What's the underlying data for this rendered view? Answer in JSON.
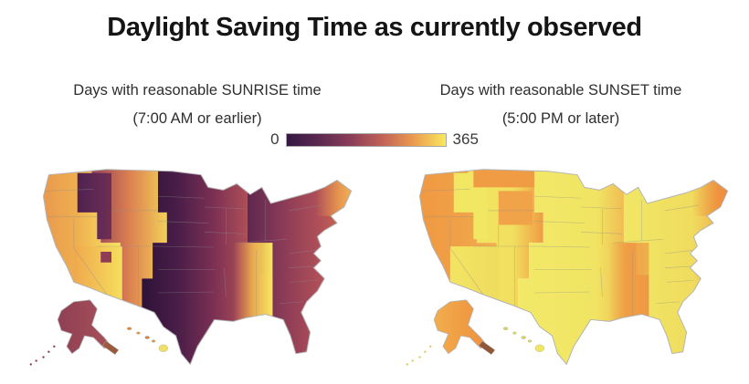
{
  "title": "Daylight Saving Time as currently observed",
  "colorbar": {
    "min_label": "0",
    "max_label": "365",
    "stops": [
      "#341943",
      "#5B2850",
      "#8A3D58",
      "#C26257",
      "#EC9B4E",
      "#F8E95F"
    ]
  },
  "panels": [
    {
      "id": "sunrise",
      "title": "Days with reasonable SUNRISE time",
      "subtitle": "(7:00 AM or earlier)",
      "palette": {
        "bands": {
          "pacific": {
            "stops": [
              [
                0,
                "#E58C4C",
                1
              ],
              [
                0.55,
                "#EFAE50",
                1
              ],
              [
                1,
                "#F6E55E",
                1
              ]
            ]
          },
          "mountain": {
            "stops": [
              [
                0,
                "#93405A",
                1
              ],
              [
                0.5,
                "#DC8050",
                1
              ],
              [
                1,
                "#F2CF58",
                1
              ]
            ]
          },
          "central": {
            "stops": [
              [
                0,
                "#2E1238",
                1
              ],
              [
                0.28,
                "#4A1E48",
                1
              ],
              [
                0.55,
                "#7C3054",
                1
              ],
              [
                0.78,
                "#A84B56",
                1
              ],
              [
                1,
                "#C96A51",
                1
              ]
            ]
          },
          "eastern": {
            "stops": [
              [
                0,
                "#5E2750",
                1
              ],
              [
                0.3,
                "#8A3A57",
                1
              ],
              [
                0.62,
                "#AF4F58",
                1
              ],
              [
                0.85,
                "#CD6852",
                1
              ],
              [
                1,
                "#E8924E",
                1
              ]
            ]
          },
          "idaho": {
            "stops": [
              [
                0,
                "#4F2150",
                1
              ],
              [
                1,
                "#6E2F55",
                1
              ]
            ]
          },
          "montana": null,
          "wyoming": null,
          "arizona": {
            "stops": [
              [
                0,
                "#EFA84E",
                1
              ],
              [
                1,
                "#F5DE5C",
                1
              ]
            ]
          },
          "azsq": {
            "solid": "#8F3C56"
          },
          "deepsouth": {
            "stops": [
              [
                0,
                "#E89A4E",
                0
              ],
              [
                0.5,
                "#EFB350",
                0.9
              ],
              [
                1,
                "#F6E75F",
                1
              ]
            ]
          },
          "maine": {
            "stops": [
              [
                0,
                "#E8954E",
                0
              ],
              [
                0.55,
                "#EFA64F",
                0.8
              ],
              [
                1,
                "#F4C455",
                1
              ]
            ]
          }
        },
        "alaska": {
          "stops": [
            [
              0,
              "#8F4055",
              1
            ],
            [
              1,
              "#A85058",
              1
            ]
          ]
        },
        "aleutians": "#9A5A3C",
        "akdots": "#8F4055",
        "hawaii": [
          "#DC8A3E",
          "#E09040",
          "#D97F3F",
          "#E09040",
          "#F0E166"
        ]
      }
    },
    {
      "id": "sunset",
      "title": "Days with reasonable SUNSET time",
      "subtitle": "(5:00 PM or later)",
      "palette": {
        "bands": {
          "pacific": {
            "stops": [
              [
                0,
                "#EF953F",
                1
              ],
              [
                0.6,
                "#F0A047",
                1
              ],
              [
                1,
                "#F2AF4C",
                1
              ]
            ]
          },
          "mountain": {
            "stops": [
              [
                0,
                "#F1E460",
                1
              ],
              [
                0.6,
                "#F1E05F",
                1
              ],
              [
                1,
                "#EF9B43",
                1
              ]
            ]
          },
          "central": {
            "stops": [
              [
                0,
                "#F2E968",
                1
              ],
              [
                0.6,
                "#F1E463",
                1
              ],
              [
                1,
                "#EF9843",
                1
              ]
            ]
          },
          "eastern": {
            "stops": [
              [
                0,
                "#F0E765",
                1
              ],
              [
                0.6,
                "#F0DC5E",
                1
              ],
              [
                1,
                "#EF9843",
                1
              ]
            ]
          },
          "idaho": {
            "stops": [
              [
                0,
                "#F1E762",
                1
              ],
              [
                1,
                "#F1E762",
                1
              ]
            ]
          },
          "montana": {
            "solid": "#F09C45"
          },
          "wyoming": {
            "solid": "#F0A348"
          },
          "arizona": {
            "stops": [
              [
                0,
                "#F2E563",
                1
              ],
              [
                1,
                "#F0DC5E",
                1
              ]
            ]
          },
          "azsq": null,
          "deepsouth": {
            "stops": [
              [
                0,
                "#EF9843",
                0
              ],
              [
                0.45,
                "#EF9843",
                0.85
              ],
              [
                1,
                "#EF9843",
                0.7
              ]
            ]
          },
          "maine": {
            "stops": [
              [
                0,
                "#EF9843",
                0
              ],
              [
                0.6,
                "#EE8E3E",
                0.9
              ],
              [
                1,
                "#EC8539",
                1
              ]
            ]
          }
        },
        "alaska": {
          "stops": [
            [
              0,
              "#F2AD4C",
              1
            ],
            [
              1,
              "#EE8F3E",
              1
            ]
          ]
        },
        "aleutians": "#8F5638",
        "akdots": "#D9CE58",
        "hawaii": [
          "#DCD45A",
          "#E0D95C",
          "#DCD45A",
          "#E0D95C",
          "#EFE85E"
        ]
      }
    }
  ],
  "chart_data": [
    {
      "type": "choropleth-map",
      "title": "Days with reasonable SUNRISE time",
      "subtitle": "(7:00 AM or earlier)",
      "area": "United States, Albers projection with Alaska and Hawaii insets, state borders shown",
      "color_scale": {
        "min": 0,
        "max": 365,
        "tick_labels": [
          "0",
          "365"
        ],
        "palette": "inferno-like: dark purple -> maroon -> red -> orange -> yellow"
      },
      "pattern": "Within each time zone the number of days increases from west to east: darkest (lowest) along each zone's western edge, brightest yellow (highest) along its eastern edge.",
      "regions_estimated_days": [
        {
          "region": "Washington / Oregon coast",
          "value": 240
        },
        {
          "region": "Central California and Nevada",
          "value": 330
        },
        {
          "region": "Idaho / eastern Oregon (western edge of Mountain zone)",
          "value": 80
        },
        {
          "region": "Western Montana / western Wyoming",
          "value": 140
        },
        {
          "region": "Eastern Colorado / eastern New Mexico",
          "value": 290
        },
        {
          "region": "Arizona (no DST observed)",
          "value": 300
        },
        {
          "region": "Navajo Nation square inside Arizona (observes DST)",
          "value": 150
        },
        {
          "region": "Western Dakotas through West Texas (western edge of Central zone)",
          "value": 40
        },
        {
          "region": "Missouri / Arkansas / Illinois",
          "value": 150
        },
        {
          "region": "Western Tennessee / Mississippi / Alabama (eastern edge of Central zone)",
          "value": 340
        },
        {
          "region": "Indiana / Michigan / Ohio / western Georgia (western edge of Eastern zone)",
          "value": 110
        },
        {
          "region": "Atlantic coast Virginia-Carolinas / Florida",
          "value": 180
        },
        {
          "region": "New England",
          "value": 250
        },
        {
          "region": "Maine (eastern edge of Eastern zone)",
          "value": 310
        },
        {
          "region": "Alaska",
          "value": 150
        },
        {
          "region": "Hawaii",
          "value": 330
        }
      ]
    },
    {
      "type": "choropleth-map",
      "title": "Days with reasonable SUNSET time",
      "subtitle": "(5:00 PM or later)",
      "area": "United States, Albers projection with Alaska and Hawaii insets, state borders shown",
      "color_scale": {
        "min": 0,
        "max": 365,
        "tick_labels": [
          "0",
          "365"
        ],
        "palette": "inferno-like: dark purple -> maroon -> red -> orange -> yellow (only orange-yellow range appears on this map)"
      },
      "pattern": "Mostly high values (yellow). Within each time zone days decrease toward the zone's eastern edge (orange bands); northern latitudes (Montana, Maine, Alaska) also dip to orange.",
      "regions_estimated_days": [
        {
          "region": "Pacific coast states (WA / OR / CA / NV)",
          "value": 250
        },
        {
          "region": "Idaho",
          "value": 340
        },
        {
          "region": "Montana / Wyoming",
          "value": 255
        },
        {
          "region": "Utah / Colorado / Arizona / New Mexico",
          "value": 335
        },
        {
          "region": "Western Dakotas-Nebraska strip (eastern edge of Mountain zone)",
          "value": 255
        },
        {
          "region": "Texas / Oklahoma / Kansas (western Central zone)",
          "value": 350
        },
        {
          "region": "Minnesota / Wisconsin / Iowa / Illinois band (eastern edge of Central zone)",
          "value": 260
        },
        {
          "region": "Tennessee / Mississippi / Alabama band (eastern edge of Central zone)",
          "value": 260
        },
        {
          "region": "Michigan / Ohio / Indiana / Kentucky / Georgia (western Eastern zone)",
          "value": 335
        },
        {
          "region": "Atlantic coast / New England",
          "value": 250
        },
        {
          "region": "Maine",
          "value": 230
        },
        {
          "region": "Florida (east coast slightly lower)",
          "value": 320
        },
        {
          "region": "Alaska",
          "value": 235
        },
        {
          "region": "Hawaii",
          "value": 345
        }
      ]
    }
  ]
}
